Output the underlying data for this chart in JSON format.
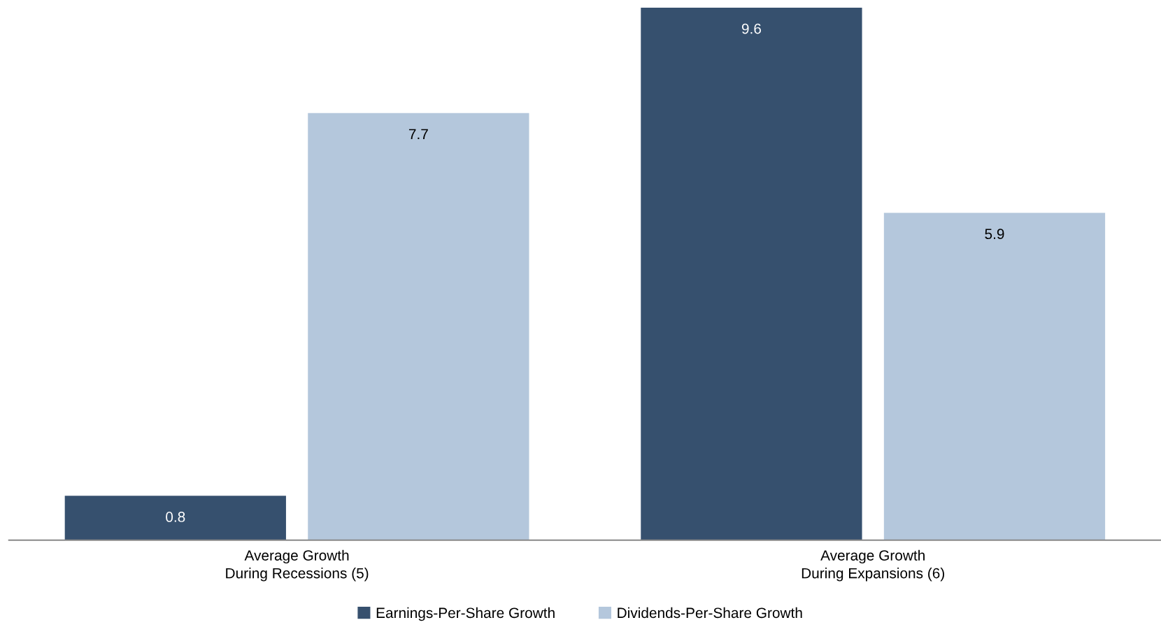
{
  "chart_data": {
    "type": "bar",
    "categories": [
      "Average Growth\nDuring Recessions (5)",
      "Average Growth\nDuring Expansions (6)"
    ],
    "series": [
      {
        "name": "Earnings-Per-Share Growth",
        "color": "#36506e",
        "values": [
          0.8,
          9.6
        ]
      },
      {
        "name": "Dividends-Per-Share Growth",
        "color": "#b4c7dc",
        "values": [
          7.7,
          5.9
        ]
      }
    ],
    "ylim": [
      0,
      9.6
    ],
    "data_labels": true,
    "grid": false,
    "legend": "bottom",
    "tick_labels": "x"
  }
}
